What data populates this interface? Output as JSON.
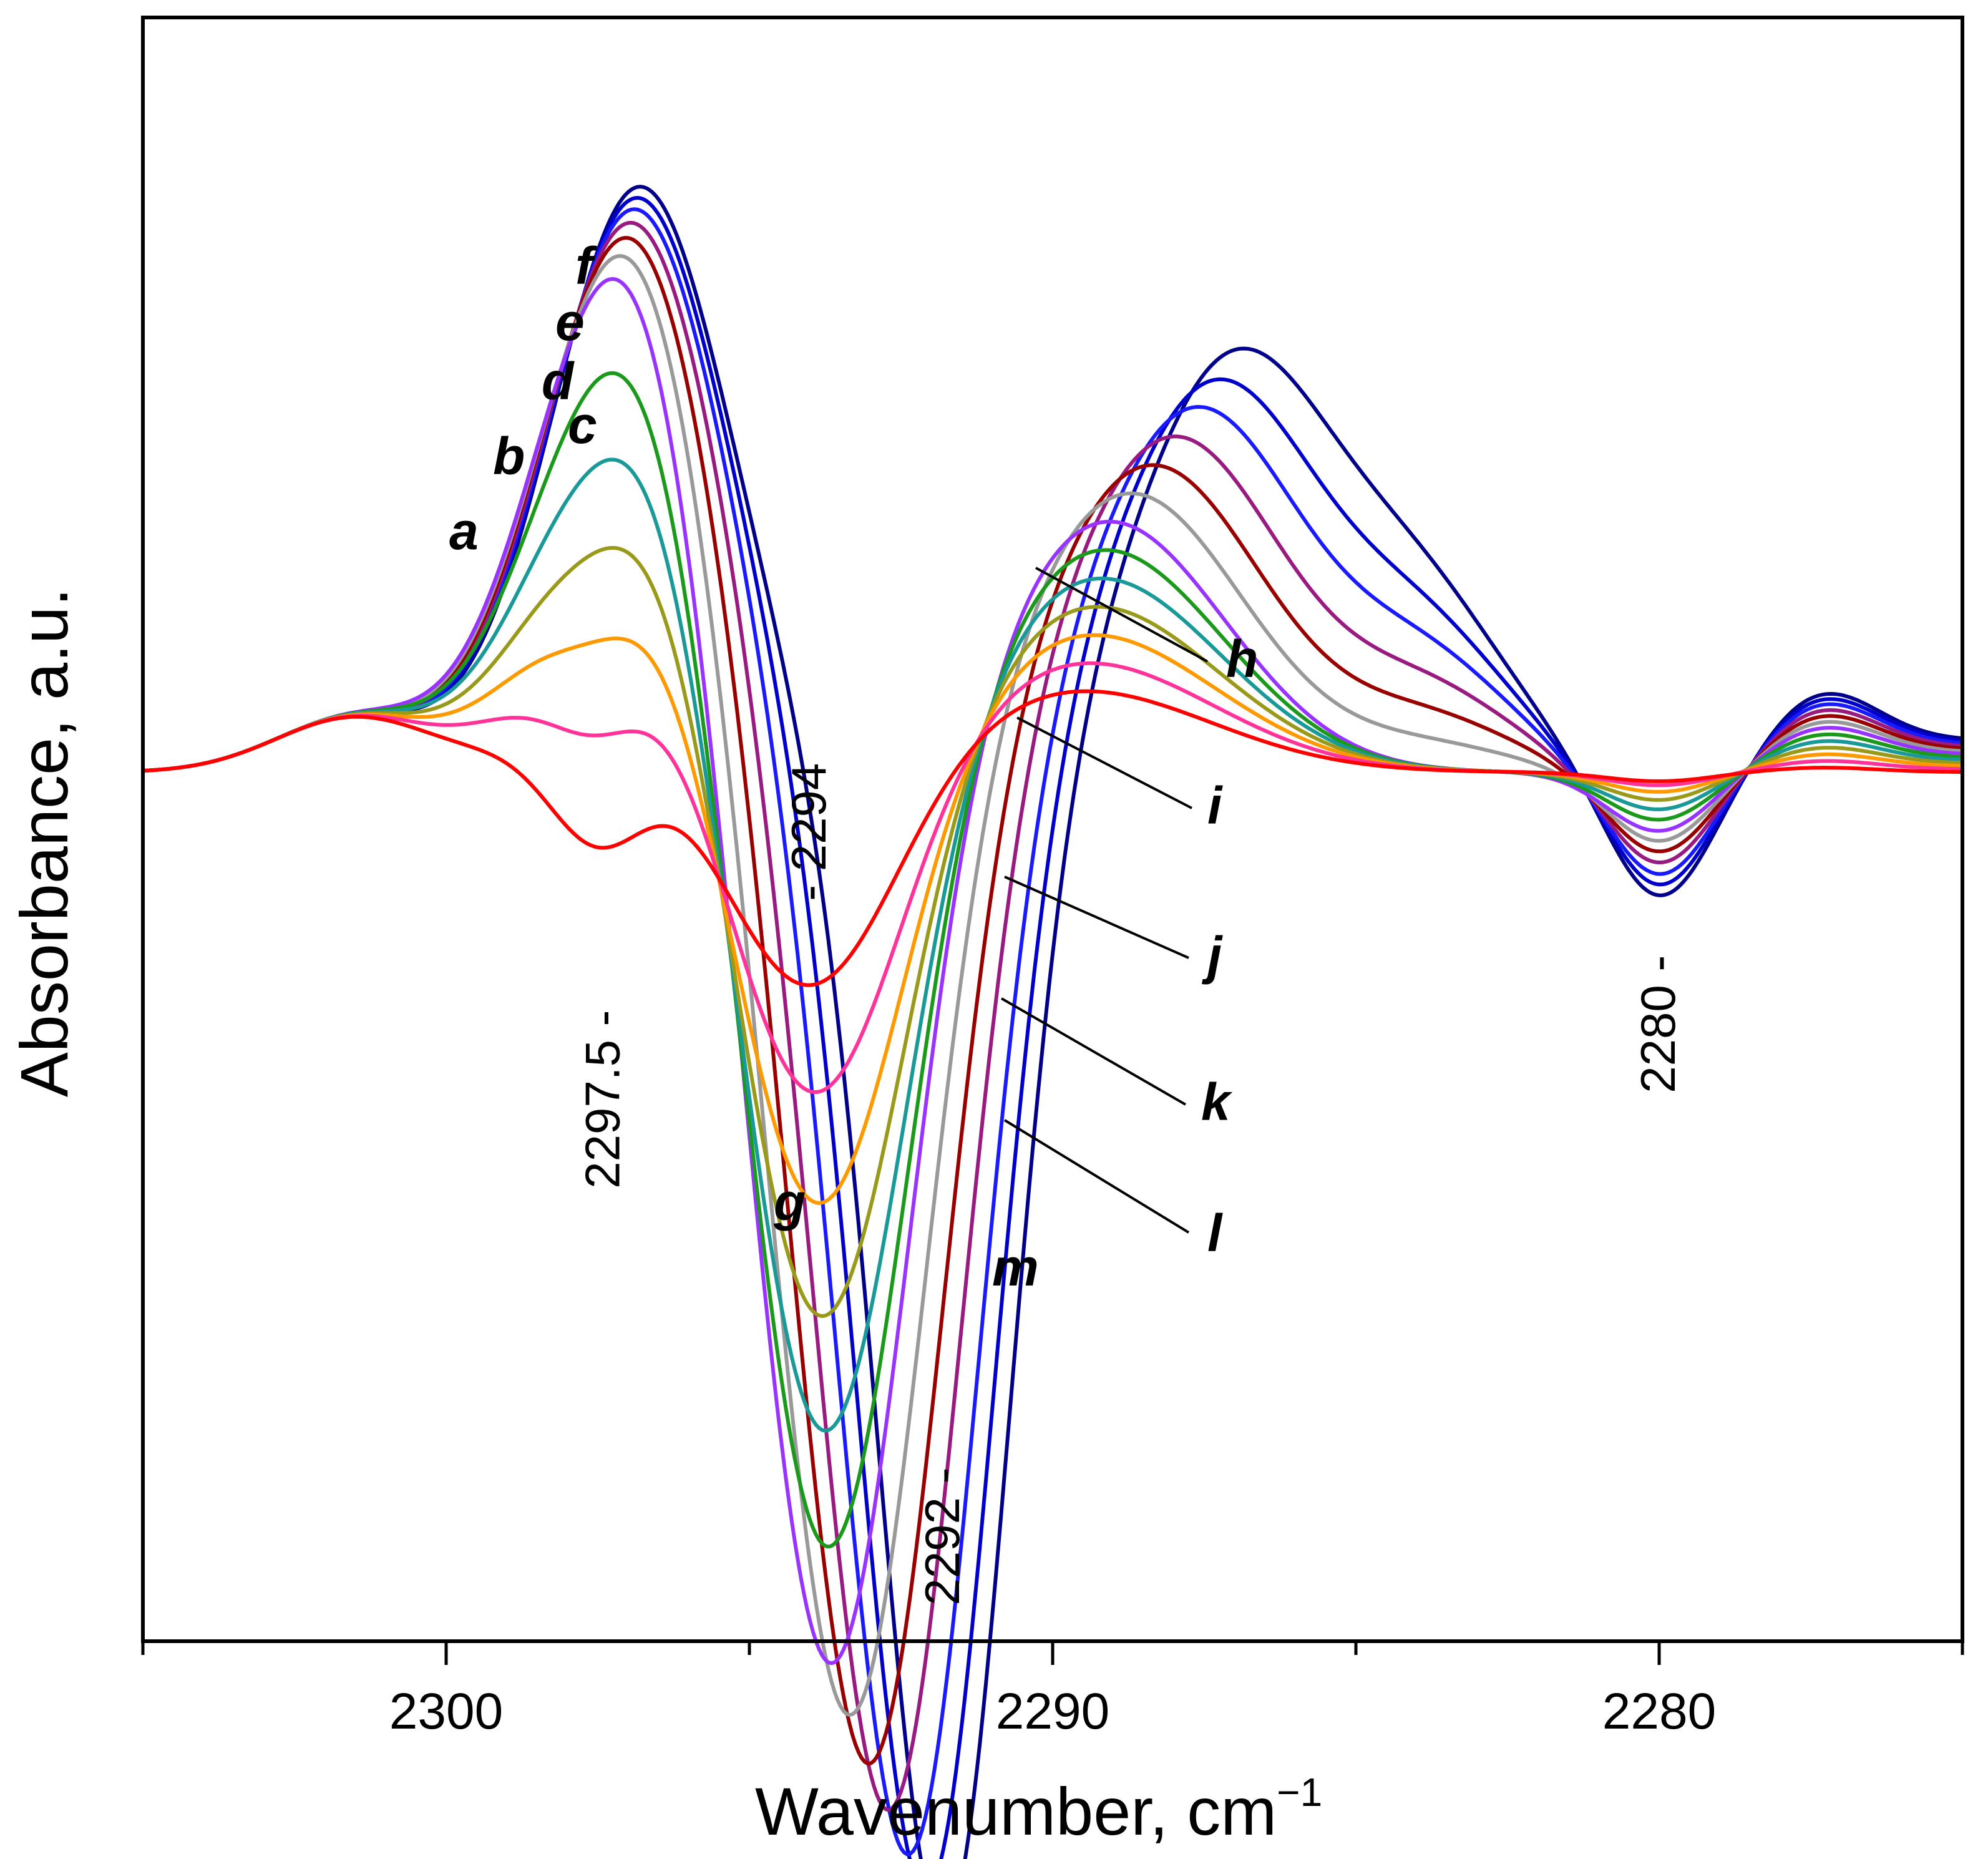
{
  "chart_data": {
    "type": "line",
    "title": "",
    "xlabel": "Wavenumber, cm",
    "xlabel_sup": "−1",
    "ylabel": "Absorbance, a.u.",
    "xlim": [
      2305,
      2275
    ],
    "x_reversed": true,
    "ylim": [
      -1.9,
      1.65
    ],
    "x_ticks": [
      2300,
      2290,
      2280
    ],
    "x_tick_labels": [
      "2300",
      "2290",
      "2280"
    ],
    "annotations": [
      {
        "label": "2297.5 -",
        "x": 2297.4,
        "y": -0.52
      },
      {
        "label": "- 2294",
        "x": 2294.0,
        "y": 0.02
      },
      {
        "label": "2292 -",
        "x": 2291.8,
        "y": -1.52
      },
      {
        "label": "2280 -",
        "x": 2280.0,
        "y": -0.4
      }
    ],
    "series": [
      {
        "name": "a",
        "color": "#ff0000",
        "pos": 0.0
      },
      {
        "name": "b",
        "color": "#ff3399",
        "pos": 0.09
      },
      {
        "name": "c",
        "color": "#ff9900",
        "pos": 0.18
      },
      {
        "name": "d",
        "color": "#99991a",
        "pos": 0.27
      },
      {
        "name": "e",
        "color": "#1a9999",
        "pos": 0.36
      },
      {
        "name": "f",
        "color": "#1a991a",
        "pos": 0.45
      },
      {
        "name": "g",
        "color": "#9933ff",
        "pos": 0.54
      },
      {
        "name": "h",
        "color": "#999999",
        "pos": 0.62
      },
      {
        "name": "i",
        "color": "#990000",
        "pos": 0.7
      },
      {
        "name": "j",
        "color": "#991a80",
        "pos": 0.78
      },
      {
        "name": "k",
        "color": "#1a1aff",
        "pos": 0.86
      },
      {
        "name": "l",
        "color": "#0000cc",
        "pos": 0.93
      },
      {
        "name": "m",
        "color": "#00008b",
        "pos": 1.0
      }
    ],
    "series_labels": [
      {
        "name": "a",
        "text": "a"
      },
      {
        "name": "b",
        "text": "b"
      },
      {
        "name": "c",
        "text": "c"
      },
      {
        "name": "d",
        "text": "d"
      },
      {
        "name": "e",
        "text": "e"
      },
      {
        "name": "f",
        "text": "f"
      },
      {
        "name": "g",
        "text": "g"
      },
      {
        "name": "h",
        "text": "h"
      },
      {
        "name": "i",
        "text": "i"
      },
      {
        "name": "j",
        "text": "j"
      },
      {
        "name": "k",
        "text": "k"
      },
      {
        "name": "l",
        "text": "l"
      },
      {
        "name": "m",
        "text": "m"
      }
    ]
  }
}
